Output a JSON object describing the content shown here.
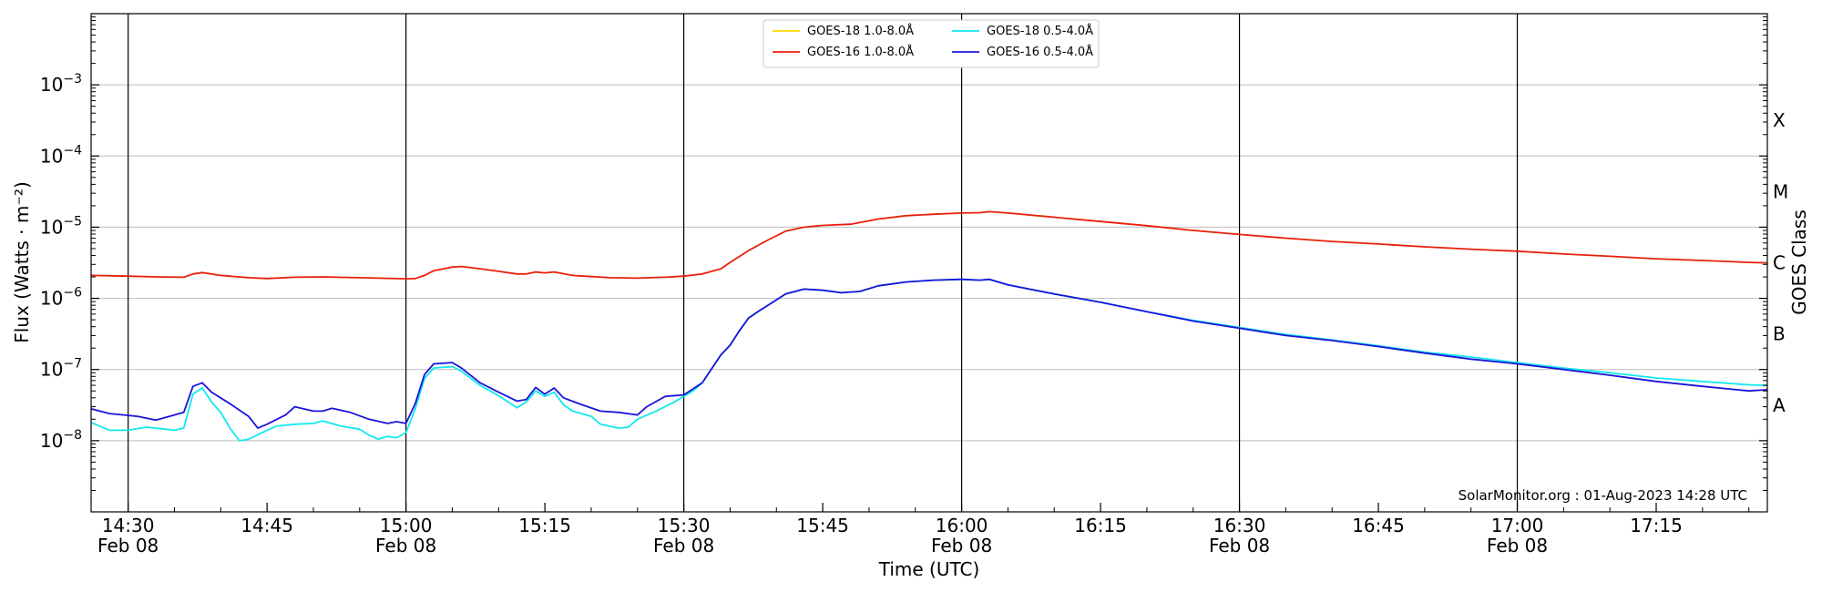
{
  "chart_data": {
    "type": "line",
    "xlabel": "Time (UTC)",
    "ylabel": "Flux (Watts · m⁻²)",
    "ylabel_right": "GOES Class",
    "credit": "SolarMonitor.org : 01-Aug-2023 14:28 UTC",
    "y_scale": "log",
    "ylim": [
      1e-09,
      0.01
    ],
    "xlim": [
      "14:26",
      "17:27"
    ],
    "grid": "horizontal at decades; vertical black lines at each half hour",
    "legend_position": "top-center",
    "x_ticks": [
      {
        "t": "14:30",
        "label": "14:30",
        "sub": "Feb 08"
      },
      {
        "t": "14:45",
        "label": "14:45",
        "sub": ""
      },
      {
        "t": "15:00",
        "label": "15:00",
        "sub": "Feb 08"
      },
      {
        "t": "15:15",
        "label": "15:15",
        "sub": ""
      },
      {
        "t": "15:30",
        "label": "15:30",
        "sub": "Feb 08"
      },
      {
        "t": "15:45",
        "label": "15:45",
        "sub": ""
      },
      {
        "t": "16:00",
        "label": "16:00",
        "sub": "Feb 08"
      },
      {
        "t": "16:15",
        "label": "16:15",
        "sub": ""
      },
      {
        "t": "16:30",
        "label": "16:30",
        "sub": "Feb 08"
      },
      {
        "t": "16:45",
        "label": "16:45",
        "sub": ""
      },
      {
        "t": "17:00",
        "label": "17:00",
        "sub": "Feb 08"
      },
      {
        "t": "17:15",
        "label": "17:15",
        "sub": ""
      }
    ],
    "vlines": [
      "14:30",
      "15:00",
      "15:30",
      "16:00",
      "16:30",
      "17:00"
    ],
    "y_ticks": [
      {
        "exp": -8,
        "base": "10",
        "sup": "−8"
      },
      {
        "exp": -7,
        "base": "10",
        "sup": "−7"
      },
      {
        "exp": -6,
        "base": "10",
        "sup": "−6"
      },
      {
        "exp": -5,
        "base": "10",
        "sup": "−5"
      },
      {
        "exp": -4,
        "base": "10",
        "sup": "−4"
      },
      {
        "exp": -3,
        "base": "10",
        "sup": "−3"
      }
    ],
    "classes": [
      {
        "label": "A",
        "exp": -7.5
      },
      {
        "label": "B",
        "exp": -6.5
      },
      {
        "label": "C",
        "exp": -5.5
      },
      {
        "label": "M",
        "exp": -4.5
      },
      {
        "label": "X",
        "exp": -3.5
      }
    ],
    "series": [
      {
        "name": "GOES-18 1.0-8.0Å",
        "color": "#ffd700",
        "in_plot": false,
        "points": []
      },
      {
        "name": "GOES-16 1.0-8.0Å",
        "color": "#e8200a",
        "in_plot": true,
        "points": [
          [
            "14:26",
            2.1e-06
          ],
          [
            "14:30",
            2.05e-06
          ],
          [
            "14:33",
            2e-06
          ],
          [
            "14:36",
            1.98e-06
          ],
          [
            "14:37",
            2.2e-06
          ],
          [
            "14:38",
            2.3e-06
          ],
          [
            "14:40",
            2.1e-06
          ],
          [
            "14:43",
            1.95e-06
          ],
          [
            "14:45",
            1.9e-06
          ],
          [
            "14:48",
            1.98e-06
          ],
          [
            "14:51",
            2e-06
          ],
          [
            "14:55",
            1.95e-06
          ],
          [
            "15:00",
            1.88e-06
          ],
          [
            "15:01",
            1.9e-06
          ],
          [
            "15:02",
            2.1e-06
          ],
          [
            "15:03",
            2.45e-06
          ],
          [
            "15:05",
            2.75e-06
          ],
          [
            "15:06",
            2.8e-06
          ],
          [
            "15:08",
            2.6e-06
          ],
          [
            "15:10",
            2.4e-06
          ],
          [
            "15:12",
            2.2e-06
          ],
          [
            "15:13",
            2.2e-06
          ],
          [
            "15:14",
            2.35e-06
          ],
          [
            "15:15",
            2.28e-06
          ],
          [
            "15:16",
            2.35e-06
          ],
          [
            "15:18",
            2.1e-06
          ],
          [
            "15:22",
            1.95e-06
          ],
          [
            "15:25",
            1.92e-06
          ],
          [
            "15:28",
            1.98e-06
          ],
          [
            "15:30",
            2.05e-06
          ],
          [
            "15:32",
            2.2e-06
          ],
          [
            "15:34",
            2.6e-06
          ],
          [
            "15:35",
            3.2e-06
          ],
          [
            "15:37",
            4.7e-06
          ],
          [
            "15:39",
            6.5e-06
          ],
          [
            "15:41",
            8.8e-06
          ],
          [
            "15:43",
            1e-05
          ],
          [
            "15:45",
            1.06e-05
          ],
          [
            "15:48",
            1.1e-05
          ],
          [
            "15:51",
            1.3e-05
          ],
          [
            "15:54",
            1.45e-05
          ],
          [
            "15:57",
            1.52e-05
          ],
          [
            "16:00",
            1.58e-05
          ],
          [
            "16:02",
            1.6e-05
          ],
          [
            "16:03",
            1.65e-05
          ],
          [
            "16:05",
            1.58e-05
          ],
          [
            "16:10",
            1.38e-05
          ],
          [
            "16:15",
            1.2e-05
          ],
          [
            "16:20",
            1.05e-05
          ],
          [
            "16:25",
            9e-06
          ],
          [
            "16:30",
            7.9e-06
          ],
          [
            "16:35",
            7e-06
          ],
          [
            "16:40",
            6.3e-06
          ],
          [
            "16:45",
            5.8e-06
          ],
          [
            "16:50",
            5.3e-06
          ],
          [
            "16:55",
            4.9e-06
          ],
          [
            "17:00",
            4.6e-06
          ],
          [
            "17:05",
            4.2e-06
          ],
          [
            "17:10",
            3.9e-06
          ],
          [
            "17:15",
            3.6e-06
          ],
          [
            "17:20",
            3.4e-06
          ],
          [
            "17:25",
            3.2e-06
          ],
          [
            "17:27",
            3.15e-06
          ]
        ]
      },
      {
        "name": "GOES-18 0.5-4.0Å",
        "color": "#10e8ee",
        "in_plot": true,
        "points": [
          [
            "14:26",
            1.8e-08
          ],
          [
            "14:28",
            1.4e-08
          ],
          [
            "14:30",
            1.4e-08
          ],
          [
            "14:32",
            1.55e-08
          ],
          [
            "14:34",
            1.45e-08
          ],
          [
            "14:35",
            1.4e-08
          ],
          [
            "14:36",
            1.5e-08
          ],
          [
            "14:37",
            4.5e-08
          ],
          [
            "14:38",
            5.5e-08
          ],
          [
            "14:39",
            3.5e-08
          ],
          [
            "14:40",
            2.5e-08
          ],
          [
            "14:41",
            1.5e-08
          ],
          [
            "14:42",
            1e-08
          ],
          [
            "14:43",
            1.05e-08
          ],
          [
            "14:45",
            1.4e-08
          ],
          [
            "14:46",
            1.6e-08
          ],
          [
            "14:48",
            1.7e-08
          ],
          [
            "14:50",
            1.75e-08
          ],
          [
            "14:51",
            1.9e-08
          ],
          [
            "14:53",
            1.6e-08
          ],
          [
            "14:55",
            1.45e-08
          ],
          [
            "14:56",
            1.2e-08
          ],
          [
            "14:57",
            1.05e-08
          ],
          [
            "14:58",
            1.15e-08
          ],
          [
            "14:59",
            1.1e-08
          ],
          [
            "15:00",
            1.3e-08
          ],
          [
            "15:01",
            2.8e-08
          ],
          [
            "15:02",
            7.5e-08
          ],
          [
            "15:03",
            1.05e-07
          ],
          [
            "15:05",
            1.1e-07
          ],
          [
            "15:06",
            9.5e-08
          ],
          [
            "15:08",
            6e-08
          ],
          [
            "15:10",
            4.3e-08
          ],
          [
            "15:12",
            2.9e-08
          ],
          [
            "15:13",
            3.5e-08
          ],
          [
            "15:14",
            5e-08
          ],
          [
            "15:15",
            4.2e-08
          ],
          [
            "15:16",
            4.8e-08
          ],
          [
            "15:17",
            3.2e-08
          ],
          [
            "15:18",
            2.6e-08
          ],
          [
            "15:20",
            2.2e-08
          ],
          [
            "15:21",
            1.7e-08
          ],
          [
            "15:23",
            1.5e-08
          ],
          [
            "15:24",
            1.55e-08
          ],
          [
            "15:25",
            2e-08
          ],
          [
            "15:27",
            2.6e-08
          ],
          [
            "15:29",
            3.5e-08
          ],
          [
            "15:30",
            4.2e-08
          ],
          [
            "15:31",
            5e-08
          ],
          [
            "15:32",
            6.5e-08
          ],
          [
            "15:34",
            1.6e-07
          ],
          [
            "15:35",
            2.2e-07
          ],
          [
            "15:36",
            3.5e-07
          ],
          [
            "15:37",
            5.3e-07
          ],
          [
            "15:38",
            6.5e-07
          ],
          [
            "15:40",
            9.5e-07
          ],
          [
            "15:41",
            1.15e-06
          ],
          [
            "15:43",
            1.35e-06
          ],
          [
            "15:45",
            1.3e-06
          ],
          [
            "15:47",
            1.2e-06
          ],
          [
            "15:49",
            1.25e-06
          ],
          [
            "15:51",
            1.5e-06
          ],
          [
            "15:54",
            1.7e-06
          ],
          [
            "15:57",
            1.8e-06
          ],
          [
            "16:00",
            1.85e-06
          ],
          [
            "16:02",
            1.8e-06
          ],
          [
            "16:03",
            1.85e-06
          ],
          [
            "16:05",
            1.55e-06
          ],
          [
            "16:10",
            1.15e-06
          ],
          [
            "16:15",
            8.8e-07
          ],
          [
            "16:20",
            6.5e-07
          ],
          [
            "16:25",
            4.9e-07
          ],
          [
            "16:30",
            3.9e-07
          ],
          [
            "16:35",
            3.1e-07
          ],
          [
            "16:40",
            2.6e-07
          ],
          [
            "16:45",
            2.15e-07
          ],
          [
            "16:50",
            1.75e-07
          ],
          [
            "16:55",
            1.5e-07
          ],
          [
            "17:00",
            1.25e-07
          ],
          [
            "17:05",
            1.05e-07
          ],
          [
            "17:10",
            9e-08
          ],
          [
            "17:15",
            7.6e-08
          ],
          [
            "17:20",
            6.8e-08
          ],
          [
            "17:25",
            6.1e-08
          ],
          [
            "17:27",
            6e-08
          ]
        ]
      },
      {
        "name": "GOES-16 0.5-4.0Å",
        "color": "#1a14d8",
        "in_plot": true,
        "points": [
          [
            "14:26",
            2.8e-08
          ],
          [
            "14:28",
            2.4e-08
          ],
          [
            "14:31",
            2.2e-08
          ],
          [
            "14:33",
            1.95e-08
          ],
          [
            "14:35",
            2.3e-08
          ],
          [
            "14:36",
            2.5e-08
          ],
          [
            "14:37",
            5.8e-08
          ],
          [
            "14:38",
            6.5e-08
          ],
          [
            "14:39",
            4.8e-08
          ],
          [
            "14:41",
            3.3e-08
          ],
          [
            "14:43",
            2.2e-08
          ],
          [
            "14:44",
            1.5e-08
          ],
          [
            "14:45",
            1.7e-08
          ],
          [
            "14:47",
            2.3e-08
          ],
          [
            "14:48",
            3e-08
          ],
          [
            "14:50",
            2.6e-08
          ],
          [
            "14:51",
            2.6e-08
          ],
          [
            "14:52",
            2.85e-08
          ],
          [
            "14:54",
            2.5e-08
          ],
          [
            "14:56",
            2e-08
          ],
          [
            "14:58",
            1.75e-08
          ],
          [
            "14:59",
            1.85e-08
          ],
          [
            "15:00",
            1.75e-08
          ],
          [
            "15:01",
            3.3e-08
          ],
          [
            "15:02",
            8.5e-08
          ],
          [
            "15:03",
            1.2e-07
          ],
          [
            "15:05",
            1.25e-07
          ],
          [
            "15:06",
            1.05e-07
          ],
          [
            "15:08",
            6.5e-08
          ],
          [
            "15:10",
            4.8e-08
          ],
          [
            "15:12",
            3.6e-08
          ],
          [
            "15:13",
            3.8e-08
          ],
          [
            "15:14",
            5.6e-08
          ],
          [
            "15:15",
            4.5e-08
          ],
          [
            "15:16",
            5.5e-08
          ],
          [
            "15:17",
            4e-08
          ],
          [
            "15:19",
            3.2e-08
          ],
          [
            "15:21",
            2.6e-08
          ],
          [
            "15:23",
            2.5e-08
          ],
          [
            "15:25",
            2.3e-08
          ],
          [
            "15:26",
            3e-08
          ],
          [
            "15:28",
            4.2e-08
          ],
          [
            "15:30",
            4.4e-08
          ],
          [
            "15:32",
            6.5e-08
          ],
          [
            "15:34",
            1.6e-07
          ],
          [
            "15:35",
            2.2e-07
          ],
          [
            "15:36",
            3.5e-07
          ],
          [
            "15:37",
            5.3e-07
          ],
          [
            "15:38",
            6.5e-07
          ],
          [
            "15:40",
            9.5e-07
          ],
          [
            "15:41",
            1.15e-06
          ],
          [
            "15:43",
            1.35e-06
          ],
          [
            "15:45",
            1.3e-06
          ],
          [
            "15:47",
            1.2e-06
          ],
          [
            "15:49",
            1.25e-06
          ],
          [
            "15:51",
            1.5e-06
          ],
          [
            "15:54",
            1.7e-06
          ],
          [
            "15:57",
            1.8e-06
          ],
          [
            "16:00",
            1.85e-06
          ],
          [
            "16:02",
            1.8e-06
          ],
          [
            "16:03",
            1.85e-06
          ],
          [
            "16:05",
            1.55e-06
          ],
          [
            "16:10",
            1.15e-06
          ],
          [
            "16:15",
            8.8e-07
          ],
          [
            "16:20",
            6.5e-07
          ],
          [
            "16:25",
            4.8e-07
          ],
          [
            "16:30",
            3.8e-07
          ],
          [
            "16:35",
            3e-07
          ],
          [
            "16:40",
            2.55e-07
          ],
          [
            "16:45",
            2.1e-07
          ],
          [
            "16:50",
            1.7e-07
          ],
          [
            "16:55",
            1.4e-07
          ],
          [
            "17:00",
            1.2e-07
          ],
          [
            "17:05",
            1e-07
          ],
          [
            "17:10",
            8.3e-08
          ],
          [
            "17:15",
            6.8e-08
          ],
          [
            "17:20",
            5.8e-08
          ],
          [
            "17:25",
            5e-08
          ],
          [
            "17:27",
            5.2e-08
          ]
        ]
      }
    ]
  }
}
